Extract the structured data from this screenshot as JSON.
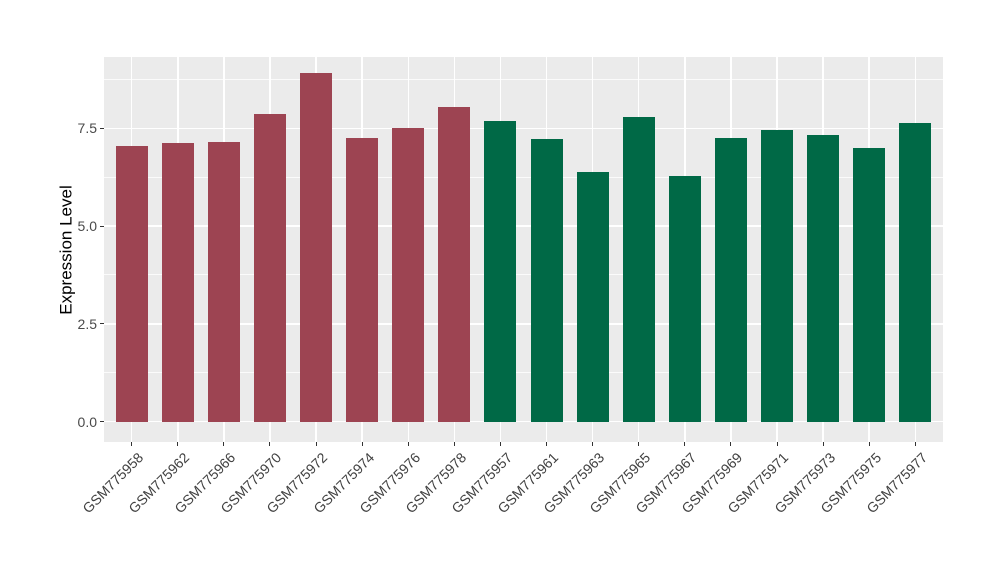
{
  "figure": {
    "background": "#FFFFFF",
    "panel_background": "#EBEBEB",
    "gridline_color": "#FFFFFF",
    "axis_text_color": "#4A4A4A",
    "tick_mark_color": "#333333"
  },
  "chart_data": {
    "type": "bar",
    "title": "",
    "xlabel": "",
    "ylabel": "Expression Level",
    "ylim": [
      -0.45,
      9.4
    ],
    "grid": "on",
    "legend_position": "none",
    "x_tick_rotation_deg": 45,
    "y_ticks": [
      {
        "value": 0.0,
        "label": "0.0"
      },
      {
        "value": 2.5,
        "label": "2.5"
      },
      {
        "value": 5.0,
        "label": "5.0"
      },
      {
        "value": 7.5,
        "label": "7.5"
      }
    ],
    "y_minor_ticks": [
      1.25,
      3.75,
      6.25,
      8.75
    ],
    "group_colors": {
      "red": "#9D4452",
      "green": "#006946"
    },
    "categories": [
      "GSM775958",
      "GSM775962",
      "GSM775966",
      "GSM775970",
      "GSM775972",
      "GSM775974",
      "GSM775976",
      "GSM775978",
      "GSM775957",
      "GSM775961",
      "GSM775963",
      "GSM775965",
      "GSM775967",
      "GSM775969",
      "GSM775971",
      "GSM775973",
      "GSM775975",
      "GSM775977"
    ],
    "values": [
      7.05,
      7.12,
      7.15,
      7.88,
      8.91,
      7.25,
      7.5,
      8.06,
      7.7,
      7.23,
      6.38,
      7.78,
      6.28,
      7.26,
      7.46,
      7.34,
      7.01,
      7.65
    ],
    "bars": [
      {
        "label": "GSM775958",
        "value": 7.05,
        "group": "red"
      },
      {
        "label": "GSM775962",
        "value": 7.12,
        "group": "red"
      },
      {
        "label": "GSM775966",
        "value": 7.15,
        "group": "red"
      },
      {
        "label": "GSM775970",
        "value": 7.88,
        "group": "red"
      },
      {
        "label": "GSM775972",
        "value": 8.91,
        "group": "red"
      },
      {
        "label": "GSM775974",
        "value": 7.25,
        "group": "red"
      },
      {
        "label": "GSM775976",
        "value": 7.5,
        "group": "red"
      },
      {
        "label": "GSM775978",
        "value": 8.06,
        "group": "red"
      },
      {
        "label": "GSM775957",
        "value": 7.7,
        "group": "green"
      },
      {
        "label": "GSM775961",
        "value": 7.23,
        "group": "green"
      },
      {
        "label": "GSM775963",
        "value": 6.38,
        "group": "green"
      },
      {
        "label": "GSM775965",
        "value": 7.78,
        "group": "green"
      },
      {
        "label": "GSM775967",
        "value": 6.28,
        "group": "green"
      },
      {
        "label": "GSM775969",
        "value": 7.26,
        "group": "green"
      },
      {
        "label": "GSM775971",
        "value": 7.46,
        "group": "green"
      },
      {
        "label": "GSM775973",
        "value": 7.34,
        "group": "green"
      },
      {
        "label": "GSM775975",
        "value": 7.01,
        "group": "green"
      },
      {
        "label": "GSM775977",
        "value": 7.65,
        "group": "green"
      }
    ]
  }
}
